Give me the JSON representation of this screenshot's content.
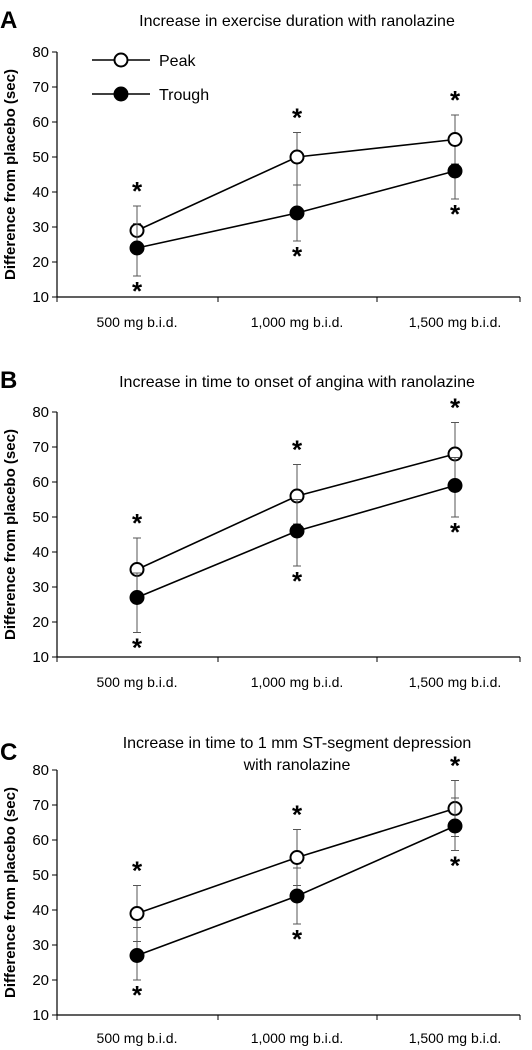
{
  "chart_data": [
    {
      "type": "line",
      "panel_label": "A",
      "title": [
        "Increase in exercise duration with ranolazine"
      ],
      "xlabel": "",
      "ylabel": "Difference from placebo (sec)",
      "categories": [
        "500 mg b.i.d.",
        "1,000 mg b.i.d.",
        "1,500 mg b.i.d."
      ],
      "ylim": [
        10,
        80
      ],
      "yticks": [
        10,
        20,
        30,
        40,
        50,
        60,
        70,
        80
      ],
      "legend": {
        "placement": "top-left",
        "entries": [
          "Peak",
          "Trough"
        ]
      },
      "series": [
        {
          "name": "Peak",
          "marker": "open-circle",
          "values": [
            29,
            50,
            55
          ],
          "err_low": [
            23,
            42,
            48
          ],
          "err_high": [
            36,
            57,
            62
          ],
          "annotations": [
            "*",
            "*",
            "*"
          ]
        },
        {
          "name": "Trough",
          "marker": "filled-circle",
          "values": [
            24,
            34,
            46
          ],
          "err_low": [
            16,
            26,
            38
          ],
          "err_high": [
            31,
            42,
            48
          ],
          "annotations": [
            "*",
            "*",
            "*"
          ]
        }
      ]
    },
    {
      "type": "line",
      "panel_label": "B",
      "title": [
        "Increase in time to onset of angina with ranolazine"
      ],
      "xlabel": "",
      "ylabel": "Difference from placebo (sec)",
      "categories": [
        "500 mg b.i.d.",
        "1,000 mg b.i.d.",
        "1,500 mg b.i.d."
      ],
      "ylim": [
        10,
        80
      ],
      "yticks": [
        10,
        20,
        30,
        40,
        50,
        60,
        70,
        80
      ],
      "series": [
        {
          "name": "Peak",
          "marker": "open-circle",
          "values": [
            35,
            56,
            68
          ],
          "err_low": [
            27,
            48,
            60
          ],
          "err_high": [
            44,
            65,
            77
          ],
          "annotations": [
            "*",
            "*",
            "*"
          ]
        },
        {
          "name": "Trough",
          "marker": "filled-circle",
          "values": [
            27,
            46,
            59
          ],
          "err_low": [
            17,
            36,
            50
          ],
          "err_high": [
            34,
            55,
            67
          ],
          "annotations": [
            "*",
            "*",
            "*"
          ]
        }
      ]
    },
    {
      "type": "line",
      "panel_label": "C",
      "title": [
        "Increase in time to 1 mm ST-segment depression",
        "with ranolazine"
      ],
      "xlabel": "",
      "ylabel": "Difference from placebo (sec)",
      "categories": [
        "500 mg b.i.d.",
        "1,000 mg b.i.d.",
        "1,500 mg b.i.d."
      ],
      "ylim": [
        10,
        80
      ],
      "yticks": [
        10,
        20,
        30,
        40,
        50,
        60,
        70,
        80
      ],
      "series": [
        {
          "name": "Peak",
          "marker": "open-circle",
          "values": [
            39,
            55,
            69
          ],
          "err_low": [
            31,
            47,
            61
          ],
          "err_high": [
            47,
            63,
            77
          ],
          "annotations": [
            "*",
            "*",
            "*"
          ]
        },
        {
          "name": "Trough",
          "marker": "filled-circle",
          "values": [
            27,
            44,
            64
          ],
          "err_low": [
            20,
            36,
            57
          ],
          "err_high": [
            35,
            52,
            72
          ],
          "annotations": [
            "*",
            "*",
            "*"
          ]
        }
      ]
    }
  ]
}
